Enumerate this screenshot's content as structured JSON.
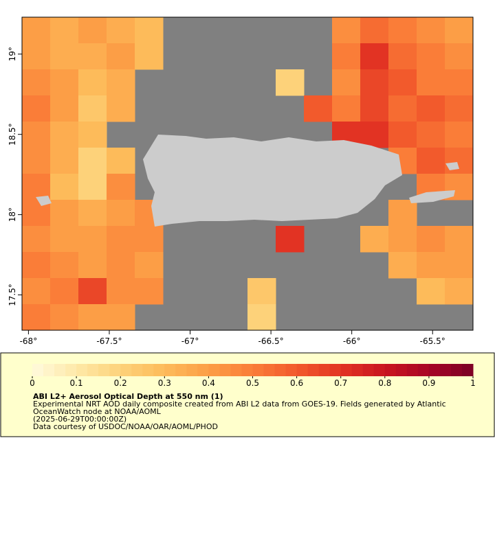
{
  "chart_data": {
    "type": "heatmap",
    "xlim": [
      -68.04,
      -65.25
    ],
    "ylim": [
      17.28,
      19.23
    ],
    "xticks": [
      {
        "value": -68,
        "label": "-68°"
      },
      {
        "value": -67.5,
        "label": "-67.5°"
      },
      {
        "value": -67,
        "label": "-67°"
      },
      {
        "value": -66.5,
        "label": "-66.5°"
      },
      {
        "value": -66,
        "label": "-66°"
      },
      {
        "value": -65.5,
        "label": "-65.5°"
      }
    ],
    "yticks": [
      {
        "value": 19,
        "label": "19°"
      },
      {
        "value": 18.5,
        "label": "18.5°"
      },
      {
        "value": 18,
        "label": "18°"
      },
      {
        "value": 17.5,
        "label": "17.5°"
      }
    ],
    "z": [
      [
        0.4,
        0.35,
        0.4,
        0.35,
        0.3,
        null,
        null,
        null,
        null,
        null,
        null,
        0.45,
        0.55,
        0.5,
        0.45,
        0.4
      ],
      [
        0.4,
        0.35,
        0.35,
        0.4,
        0.3,
        null,
        null,
        null,
        null,
        null,
        null,
        0.5,
        0.7,
        0.55,
        0.5,
        0.45
      ],
      [
        0.45,
        0.4,
        0.3,
        0.35,
        null,
        null,
        null,
        null,
        null,
        0.2,
        null,
        0.45,
        0.65,
        0.6,
        0.5,
        0.5
      ],
      [
        0.5,
        0.4,
        0.25,
        0.35,
        null,
        null,
        null,
        null,
        null,
        null,
        0.6,
        0.5,
        0.65,
        0.55,
        0.6,
        0.55
      ],
      [
        0.45,
        0.35,
        0.3,
        null,
        null,
        null,
        null,
        null,
        null,
        null,
        null,
        0.7,
        0.7,
        0.6,
        0.55,
        0.5
      ],
      [
        0.45,
        0.35,
        0.2,
        0.3,
        null,
        null,
        null,
        null,
        null,
        null,
        null,
        null,
        null,
        0.5,
        0.6,
        0.55
      ],
      [
        0.5,
        0.3,
        0.2,
        0.45,
        null,
        null,
        null,
        null,
        null,
        null,
        null,
        null,
        null,
        null,
        0.5,
        0.45
      ],
      [
        0.5,
        0.4,
        0.35,
        0.4,
        0.45,
        null,
        null,
        null,
        null,
        null,
        null,
        null,
        null,
        0.4,
        null,
        null
      ],
      [
        0.45,
        0.4,
        0.4,
        0.45,
        0.45,
        null,
        null,
        null,
        null,
        0.7,
        null,
        null,
        0.35,
        0.4,
        0.45,
        0.4
      ],
      [
        0.5,
        0.45,
        0.4,
        0.45,
        0.4,
        null,
        null,
        null,
        null,
        null,
        null,
        null,
        null,
        0.35,
        0.4,
        0.4
      ],
      [
        0.45,
        0.5,
        0.65,
        0.45,
        0.45,
        null,
        null,
        null,
        0.25,
        null,
        null,
        null,
        null,
        null,
        0.3,
        0.35
      ],
      [
        0.5,
        0.45,
        0.4,
        0.4,
        null,
        null,
        null,
        null,
        0.2,
        null,
        null,
        null,
        null,
        null,
        null,
        null
      ]
    ],
    "colorbar": {
      "lim": [
        0,
        1
      ],
      "ticks": [
        0,
        0.1,
        0.2,
        0.3,
        0.4,
        0.5,
        0.6,
        0.7,
        0.8,
        0.9,
        1
      ],
      "colors": [
        "#fffadc",
        "#fee9a8",
        "#fdd27a",
        "#fdbb5a",
        "#fc9e46",
        "#fa7d38",
        "#f25a2c",
        "#e23323",
        "#c9151f",
        "#a80526",
        "#7a0025"
      ]
    },
    "legend": {
      "title": "ABI L2+ Aerosol Optical Depth at 550 nm (1)",
      "lines": [
        "Experimental NRT AOD daily composite created from ABI L2 data from GOES-19. Fields generated by Atlantic",
        "OceanWatch node at NOAA/AOML",
        "(2025-06-29T00:00:00Z)",
        "Data courtesy of USDOC/NOAA/OAR/AOML/PHOD"
      ]
    }
  }
}
